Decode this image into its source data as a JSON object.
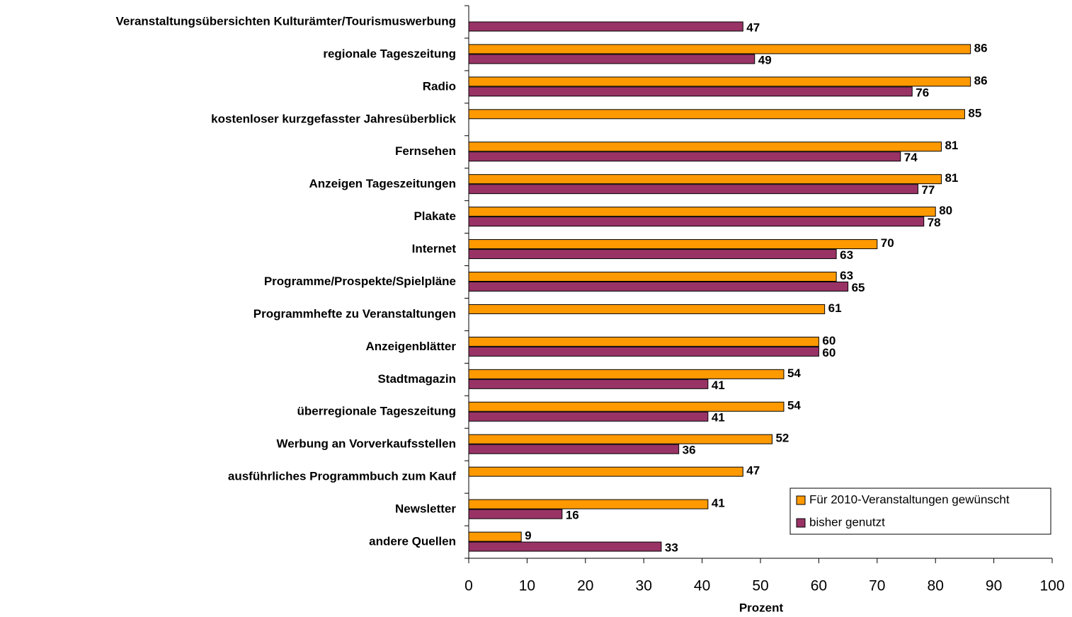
{
  "chart_data": {
    "type": "hbar",
    "categories": [
      "Veranstaltungsübersichten Kulturämter/Tourismuswerbung",
      "regionale Tageszeitung",
      "Radio",
      "kostenloser kurzgefasster Jahresüberblick",
      "Fernsehen",
      "Anzeigen Tageszeitungen",
      "Plakate",
      "Internet",
      "Programme/Prospekte/Spielpläne",
      "Programmhefte zu Veranstaltungen",
      "Anzeigenblätter",
      "Stadtmagazin",
      "überregionale Tageszeitung",
      "Werbung an Vorverkaufsstellen",
      "ausführliches Programmbuch zum Kauf",
      "Newsletter",
      "andere Quellen"
    ],
    "series": [
      {
        "name": "Für 2010-Veranstaltungen gewünscht",
        "color": "#ff9900",
        "values": [
          null,
          86,
          86,
          85,
          81,
          81,
          80,
          70,
          63,
          61,
          60,
          54,
          54,
          52,
          47,
          41,
          9
        ]
      },
      {
        "name": "bisher genutzt",
        "color": "#993366",
        "values": [
          47,
          49,
          76,
          null,
          74,
          77,
          78,
          63,
          65,
          null,
          60,
          41,
          41,
          36,
          null,
          16,
          33
        ]
      }
    ],
    "xlabel": "Prozent",
    "xlim": [
      0,
      100
    ],
    "xticks": [
      0,
      10,
      20,
      30,
      40,
      50,
      60,
      70,
      80,
      90,
      100
    ],
    "legend": "lower right",
    "grid": false
  }
}
